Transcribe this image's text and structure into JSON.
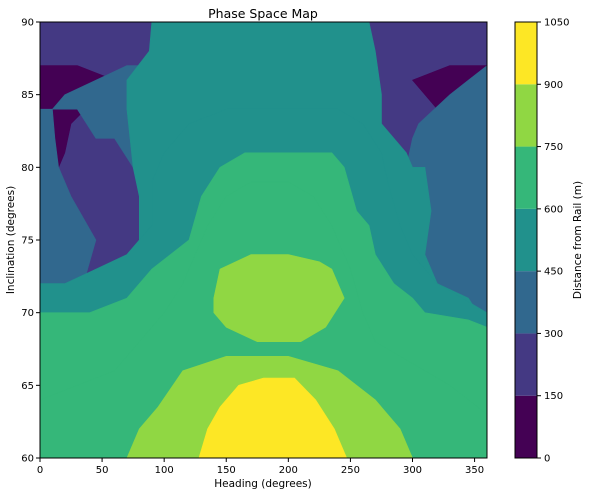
{
  "chart_data": {
    "type": "contour",
    "title": "Phase Space Map",
    "xlabel": "Heading (degrees)",
    "ylabel": "Inclination (degrees)",
    "xlim": [
      0,
      360
    ],
    "ylim": [
      60,
      90
    ],
    "xticks": [
      "0",
      "50",
      "100",
      "150",
      "200",
      "250",
      "300",
      "350"
    ],
    "yticks": [
      "60",
      "65",
      "70",
      "75",
      "80",
      "85",
      "90"
    ],
    "colorbar": {
      "label": "Distance from Rail (m)",
      "levels": [
        0,
        150,
        300,
        450,
        600,
        750,
        900,
        1050
      ],
      "ticks": [
        "0",
        "150",
        "300",
        "450",
        "600",
        "750",
        "900",
        "1050"
      ],
      "colors": [
        "#440154",
        "#443983",
        "#31688e",
        "#21918c",
        "#35b779",
        "#90d743",
        "#fde725"
      ]
    },
    "regions": [
      {
        "level": 1,
        "points": [
          [
            0,
            60
          ],
          [
            360,
            60
          ],
          [
            360,
            90
          ],
          [
            0,
            90
          ]
        ]
      },
      {
        "level": 0,
        "points": [
          [
            0,
            78
          ],
          [
            10,
            79
          ],
          [
            20,
            81
          ],
          [
            25,
            83
          ],
          [
            60,
            86
          ],
          [
            30,
            87
          ],
          [
            0,
            87
          ]
        ]
      },
      {
        "level": 0,
        "points": [
          [
            360,
            77
          ],
          [
            345,
            77
          ],
          [
            335,
            80
          ],
          [
            320,
            84
          ],
          [
            300,
            86
          ],
          [
            330,
            87
          ],
          [
            360,
            87
          ]
        ]
      },
      {
        "level": 2,
        "points": [
          [
            0,
            60
          ],
          [
            360,
            60
          ],
          [
            360,
            87
          ],
          [
            345,
            86
          ],
          [
            330,
            85
          ],
          [
            305,
            83
          ],
          [
            300,
            82
          ],
          [
            295,
            80
          ],
          [
            295,
            78
          ],
          [
            300,
            76
          ],
          [
            305,
            75
          ],
          [
            320,
            72
          ],
          [
            340,
            71
          ],
          [
            345,
            70
          ],
          [
            300,
            69
          ],
          [
            268,
            68
          ],
          [
            250,
            66
          ],
          [
            210,
            65
          ],
          [
            170,
            65
          ],
          [
            135,
            66
          ],
          [
            110,
            68
          ],
          [
            80,
            69
          ],
          [
            60,
            70
          ],
          [
            40,
            70
          ],
          [
            0,
            70.5
          ]
        ]
      },
      {
        "level": 2,
        "points": [
          [
            0,
            70.5
          ],
          [
            15,
            71
          ],
          [
            35,
            72
          ],
          [
            45,
            75
          ],
          [
            25,
            78
          ],
          [
            15,
            80
          ],
          [
            12,
            82
          ],
          [
            10,
            84
          ],
          [
            20,
            85
          ],
          [
            45,
            86
          ],
          [
            70,
            87
          ],
          [
            90,
            87
          ],
          [
            95,
            90
          ],
          [
            265,
            90
          ],
          [
            268,
            86
          ],
          [
            260,
            82
          ],
          [
            250,
            80
          ],
          [
            250,
            77
          ],
          [
            255,
            76
          ],
          [
            255,
            74
          ],
          [
            200,
            73
          ],
          [
            150,
            73
          ],
          [
            120,
            73
          ],
          [
            100,
            75
          ],
          [
            85,
            78
          ],
          [
            75,
            80
          ],
          [
            60,
            82
          ],
          [
            45,
            82
          ],
          [
            30,
            84
          ],
          [
            0,
            84
          ]
        ]
      },
      {
        "level": 3,
        "points": [
          [
            0,
            60
          ],
          [
            360,
            60
          ],
          [
            360,
            69
          ],
          [
            345,
            71
          ],
          [
            320,
            72
          ],
          [
            310,
            74
          ],
          [
            315,
            77
          ],
          [
            310,
            80
          ],
          [
            300,
            80
          ],
          [
            295,
            81
          ],
          [
            275,
            83
          ],
          [
            275,
            85
          ],
          [
            270,
            88
          ],
          [
            265,
            90
          ],
          [
            90,
            90
          ],
          [
            88,
            88
          ],
          [
            70,
            86
          ],
          [
            70,
            84
          ],
          [
            75,
            80
          ],
          [
            80,
            78
          ],
          [
            80,
            75
          ],
          [
            70,
            73
          ],
          [
            50,
            72.5
          ],
          [
            40,
            72
          ],
          [
            25,
            71
          ],
          [
            0,
            71
          ]
        ]
      },
      {
        "level": 3,
        "points": [
          [
            0,
            60
          ],
          [
            360,
            60
          ],
          [
            360,
            70
          ],
          [
            340,
            71
          ],
          [
            320,
            72
          ],
          [
            300,
            74
          ],
          [
            290,
            76
          ],
          [
            280,
            79
          ],
          [
            275,
            81
          ],
          [
            260,
            83
          ],
          [
            240,
            84
          ],
          [
            200,
            84
          ],
          [
            150,
            84
          ],
          [
            120,
            83
          ],
          [
            100,
            81
          ],
          [
            90,
            79
          ],
          [
            90,
            76
          ],
          [
            70,
            74
          ],
          [
            45,
            73
          ],
          [
            20,
            72
          ],
          [
            0,
            72
          ]
        ]
      },
      {
        "level": 4,
        "points": [
          [
            0,
            60
          ],
          [
            360,
            60
          ],
          [
            360,
            69
          ],
          [
            345,
            69.5
          ],
          [
            310,
            70
          ],
          [
            300,
            71
          ],
          [
            285,
            72
          ],
          [
            270,
            74
          ],
          [
            265,
            76
          ],
          [
            255,
            77
          ],
          [
            245,
            80
          ],
          [
            235,
            81
          ],
          [
            205,
            81
          ],
          [
            165,
            81
          ],
          [
            145,
            80
          ],
          [
            130,
            78
          ],
          [
            120,
            75
          ],
          [
            90,
            73
          ],
          [
            70,
            71
          ],
          [
            40,
            70
          ],
          [
            0,
            70
          ]
        ]
      },
      {
        "level": 4,
        "points": [
          [
            0,
            60
          ],
          [
            360,
            60
          ],
          [
            360,
            63
          ],
          [
            330,
            65
          ],
          [
            310,
            66
          ],
          [
            290,
            67
          ],
          [
            270,
            68
          ],
          [
            260,
            70
          ],
          [
            250,
            73
          ],
          [
            235,
            76
          ],
          [
            220,
            78
          ],
          [
            200,
            79
          ],
          [
            170,
            79
          ],
          [
            150,
            78
          ],
          [
            135,
            76
          ],
          [
            125,
            74
          ],
          [
            115,
            72
          ],
          [
            100,
            70
          ],
          [
            80,
            68
          ],
          [
            60,
            66
          ],
          [
            30,
            65
          ],
          [
            0,
            64
          ]
        ]
      },
      {
        "level": 5,
        "points": [
          [
            70,
            60
          ],
          [
            300,
            60
          ],
          [
            290,
            62
          ],
          [
            270,
            64
          ],
          [
            240,
            66
          ],
          [
            200,
            67
          ],
          [
            150,
            67
          ],
          [
            115,
            66
          ],
          [
            95,
            63.5
          ],
          [
            80,
            62
          ]
        ]
      },
      {
        "level": 5,
        "points": [
          [
            140,
            71
          ],
          [
            145,
            73
          ],
          [
            170,
            74
          ],
          [
            200,
            74
          ],
          [
            225,
            73.5
          ],
          [
            235,
            73
          ],
          [
            245,
            71
          ],
          [
            230,
            69
          ],
          [
            210,
            68
          ],
          [
            175,
            68
          ],
          [
            150,
            69
          ],
          [
            140,
            70
          ]
        ]
      },
      {
        "level": 6,
        "points": [
          [
            128,
            60
          ],
          [
            247,
            60
          ],
          [
            237,
            62
          ],
          [
            222,
            64
          ],
          [
            205,
            65.5
          ],
          [
            180,
            65.5
          ],
          [
            160,
            65
          ],
          [
            145,
            63.5
          ],
          [
            135,
            62
          ]
        ]
      }
    ]
  }
}
